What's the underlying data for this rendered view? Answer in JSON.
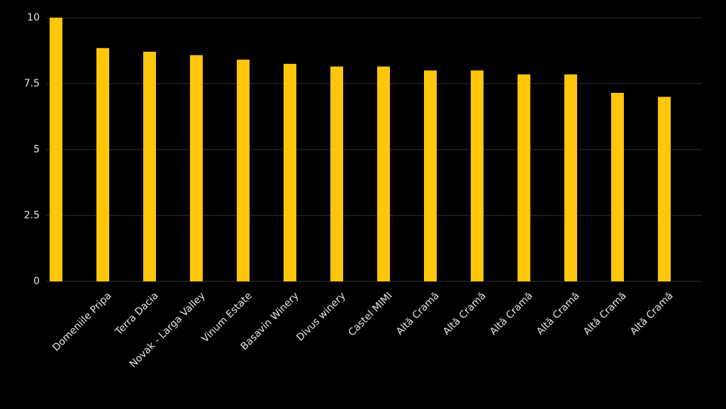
{
  "chart_data": {
    "type": "bar",
    "categories": [
      null,
      "Domeniile Pripa",
      "Terra Dacia",
      "Novak - Larga Valley",
      "Vinum Estate",
      "Basavin Winery",
      "Divus winery",
      "Castel MIMI",
      "Altă Cramă",
      "Altă Cramă",
      "Altă Cramă",
      "Altă Cramă",
      "Altă Cramă",
      "Altă Cramă"
    ],
    "values": [
      10,
      8.85,
      8.71,
      8.58,
      8.41,
      8.25,
      8.15,
      8.15,
      8.0,
      8.0,
      7.85,
      7.85,
      7.15,
      7.0
    ],
    "color": "#ffc60b",
    "ylim": [
      0,
      10
    ],
    "yticks": [
      0,
      2.5,
      5,
      7.5,
      10
    ],
    "grid": true
  }
}
